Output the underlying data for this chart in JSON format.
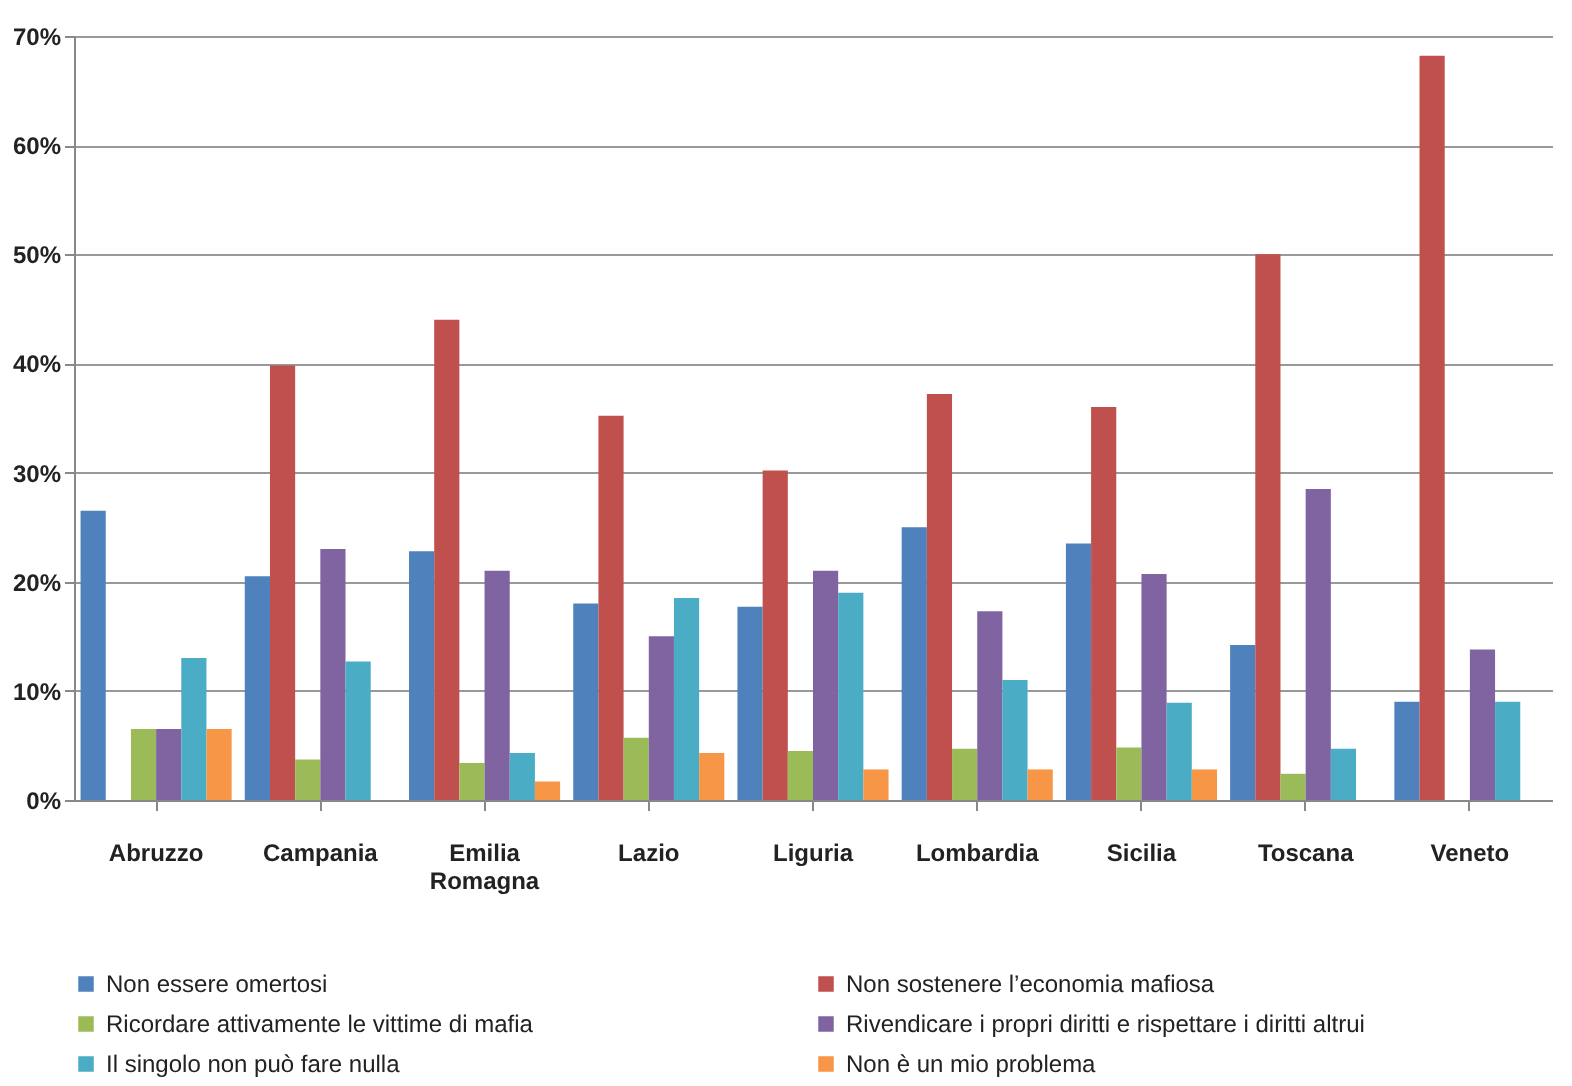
{
  "chart_data": {
    "type": "bar",
    "categories": [
      "Abruzzo",
      "Campania",
      "Emilia Romagna",
      "Lazio",
      "Liguria",
      "Lombardia",
      "Sicilia",
      "Toscana",
      "Veneto"
    ],
    "series": [
      {
        "name": "Non essere omertosi",
        "color": "#4f81bd",
        "values": [
          26.5,
          20.5,
          22.8,
          18,
          17.7,
          25,
          23.5,
          14.2,
          9
        ]
      },
      {
        "name": "Non sostenere l’economia mafiosa",
        "color": "#c0504d",
        "values": [
          null,
          39.8,
          44,
          35.2,
          30.2,
          37.2,
          36,
          50,
          68.2
        ]
      },
      {
        "name": "Ricordare attivamente le vittime di mafia",
        "color": "#9bbb59",
        "values": [
          6.5,
          3.7,
          3.4,
          5.7,
          4.5,
          4.7,
          4.8,
          2.4,
          null
        ]
      },
      {
        "name": "Rivendicare i propri diritti e rispettare i diritti altrui",
        "color": "#8064a2",
        "values": [
          6.5,
          23,
          21,
          15,
          21,
          17.3,
          20.7,
          28.5,
          13.8
        ]
      },
      {
        "name": "Il singolo non può fare nulla",
        "color": "#4bacc6",
        "values": [
          13,
          12.7,
          4.3,
          18.5,
          19,
          11,
          8.9,
          4.7,
          9
        ]
      },
      {
        "name": "Non è un mio problema",
        "color": "#f79646",
        "values": [
          6.5,
          null,
          1.7,
          4.3,
          2.8,
          2.8,
          2.8,
          null,
          null
        ]
      }
    ],
    "ylim": [
      0,
      70
    ],
    "yticks": [
      {
        "value": 0,
        "label": "0%"
      },
      {
        "value": 10,
        "label": "10%"
      },
      {
        "value": 20,
        "label": "20%"
      },
      {
        "value": 30,
        "label": "30%"
      },
      {
        "value": 40,
        "label": "40%"
      },
      {
        "value": 50,
        "label": "50%"
      },
      {
        "value": 60,
        "label": "60%"
      },
      {
        "value": 70,
        "label": "70%"
      }
    ],
    "grid": "y",
    "legend": "bottom"
  }
}
